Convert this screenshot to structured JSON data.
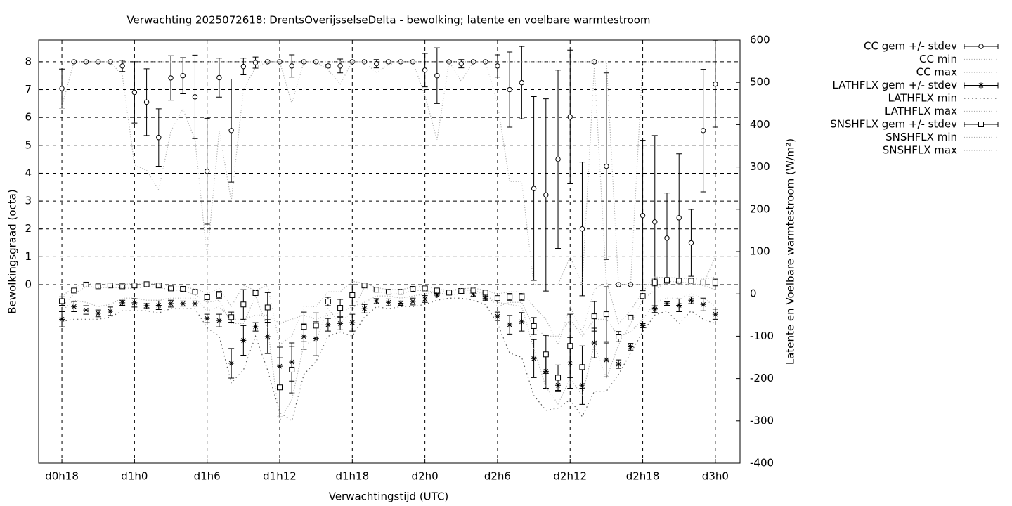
{
  "chart_data": {
    "type": "errorbar",
    "title": "Verwachting 2025072618: DrentsOverijsselseDelta - bewolking; latente en voelbare warmtestroom",
    "xlabel": "Verwachtingstijd (UTC)",
    "ylabel": "Bewolkingsgraad (octa)",
    "y2label": "Latente en Voelbare warmtestroom (W/m²)",
    "x": [
      18,
      19,
      20,
      21,
      22,
      23,
      24,
      25,
      26,
      27,
      28,
      29,
      30,
      31,
      32,
      33,
      34,
      35,
      36,
      37,
      38,
      39,
      40,
      41,
      42,
      43,
      44,
      45,
      46,
      47,
      48,
      49,
      50,
      51,
      52,
      53,
      54,
      55,
      56,
      57,
      58,
      59,
      60,
      61,
      62,
      63,
      64,
      65,
      66,
      67,
      68,
      69,
      70,
      71,
      72
    ],
    "xlim": [
      16.08,
      74.04
    ],
    "xticks": [
      {
        "value": 18,
        "label": "d0h18"
      },
      {
        "value": 24,
        "label": "d1h0"
      },
      {
        "value": 30,
        "label": "d1h6"
      },
      {
        "value": 36,
        "label": "d1h12"
      },
      {
        "value": 42,
        "label": "d1h18"
      },
      {
        "value": 48,
        "label": "d2h0"
      },
      {
        "value": 54,
        "label": "d2h6"
      },
      {
        "value": 60,
        "label": "d2h12"
      },
      {
        "value": 66,
        "label": "d2h18"
      },
      {
        "value": 72,
        "label": "d3h0"
      }
    ],
    "ylim": [
      -6.41,
      8.78
    ],
    "yticks": [
      0,
      1,
      2,
      3,
      4,
      5,
      6,
      7,
      8
    ],
    "y2lim": [
      -400,
      600
    ],
    "y2ticks": [
      -400,
      -300,
      -200,
      -100,
      0,
      100,
      200,
      300,
      400,
      500,
      600
    ],
    "grid": true,
    "legend": "outside-right",
    "series": [
      {
        "name": "CC gem +/- stdev",
        "style": "errorbars",
        "marker": "circle",
        "color": "#000000",
        "values": [
          7.04,
          8,
          8,
          8,
          8,
          7.85,
          6.9,
          6.55,
          5.28,
          7.42,
          7.5,
          6.74,
          4.07,
          7.43,
          5.53,
          7.83,
          7.97,
          8,
          8,
          7.85,
          8,
          8,
          7.85,
          7.85,
          8,
          8,
          7.93,
          8,
          8,
          8,
          7.7,
          7.5,
          8,
          7.93,
          8,
          8,
          7.85,
          7.0,
          7.25,
          3.45,
          3.22,
          4.5,
          6.02,
          2.0,
          8,
          4.25,
          0,
          0,
          2.48,
          2.25,
          1.67,
          2.4,
          1.5,
          5.53,
          7.2
        ],
        "errors": [
          0.7,
          0,
          0,
          0,
          0,
          0.2,
          1.1,
          1.2,
          1.03,
          0.8,
          0.65,
          1.5,
          1.9,
          0.7,
          1.85,
          0.3,
          0.2,
          0,
          0,
          0.4,
          0,
          0,
          0.05,
          0.25,
          0,
          0,
          0.15,
          0.05,
          0,
          0,
          0.6,
          1.0,
          0,
          0.15,
          0,
          0,
          0.4,
          1.35,
          1.3,
          3.3,
          3.45,
          3.2,
          2.4,
          2.4,
          0.05,
          3.35,
          0,
          0,
          2.7,
          3.1,
          1.62,
          2.3,
          1.2,
          2.2,
          1.55
        ]
      },
      {
        "name": "CC min",
        "style": "dotted",
        "color": "#aaaaaa",
        "values": [
          6.4,
          8,
          8,
          8,
          8,
          7.5,
          4.3,
          4.1,
          3.4,
          5.5,
          6.3,
          5.2,
          1.0,
          5.5,
          3.0,
          7.0,
          7.8,
          8,
          8,
          6.5,
          8,
          8,
          7.7,
          7.2,
          8,
          8,
          7.6,
          7.9,
          8,
          8,
          6.8,
          5.2,
          8,
          7.3,
          8,
          8,
          6.5,
          3.7,
          3.7,
          0,
          0,
          0,
          1,
          0,
          7.8,
          0,
          0,
          0,
          0,
          0,
          0,
          0,
          0,
          0,
          1.0
        ]
      },
      {
        "name": "CC max",
        "style": "dotted",
        "color": "#aaaaaa",
        "values": [
          8,
          8,
          8,
          8,
          8,
          8,
          8,
          8,
          8,
          8,
          8,
          8,
          8,
          8,
          8,
          8,
          8,
          8,
          8,
          8,
          8,
          8,
          8,
          8,
          8,
          8,
          8,
          8,
          8,
          8,
          8,
          8,
          8,
          8,
          8,
          8,
          8,
          8,
          8,
          8,
          8,
          8,
          8,
          8,
          8,
          8,
          0,
          0,
          8,
          8,
          8,
          8,
          8,
          8,
          8
        ]
      },
      {
        "name": "LATHFLX gem +/- stdev",
        "style": "errorbars",
        "marker": "star",
        "color": "#000000",
        "axis": "y2",
        "values": [
          -60,
          -30,
          -38,
          -46,
          -41,
          -21,
          -21,
          -28,
          -27,
          -23,
          -23,
          -23,
          -58,
          -63,
          -164,
          -110,
          -78,
          -101,
          -171,
          -161,
          -101,
          -106,
          -73,
          -70,
          -68,
          -35,
          -17,
          -20,
          -22,
          -18,
          -12,
          -3,
          3,
          6,
          0,
          -10,
          -53,
          -73,
          -66,
          -153,
          -183,
          -216,
          -163,
          -216,
          -116,
          -156,
          -166,
          -125,
          -75,
          -36,
          -23,
          -27,
          -15,
          -25,
          -48
        ],
        "errors": [
          18,
          12,
          10,
          8,
          10,
          6,
          10,
          5,
          10,
          8,
          6,
          6,
          10,
          15,
          35,
          35,
          10,
          40,
          45,
          45,
          30,
          40,
          15,
          15,
          20,
          10,
          6,
          8,
          5,
          8,
          8,
          4,
          3,
          6,
          6,
          5,
          10,
          22,
          22,
          45,
          40,
          15,
          60,
          45,
          35,
          40,
          10,
          8,
          5,
          8,
          4,
          15,
          8,
          15,
          12
        ]
      },
      {
        "name": "LATHFLX min",
        "style": "dotted",
        "color": "#555555",
        "axis": "y2",
        "values": [
          -65,
          -60,
          -60,
          -60,
          -55,
          -40,
          -40,
          -40,
          -45,
          -35,
          -35,
          -35,
          -80,
          -100,
          -210,
          -180,
          -100,
          -180,
          -280,
          -300,
          -190,
          -160,
          -100,
          -90,
          -100,
          -55,
          -30,
          -35,
          -30,
          -30,
          -25,
          -15,
          -10,
          -10,
          -15,
          -25,
          -70,
          -140,
          -150,
          -240,
          -275,
          -270,
          -250,
          -290,
          -230,
          -230,
          -190,
          -140,
          -90,
          -50,
          -40,
          -70,
          -40,
          -60,
          -70
        ]
      },
      {
        "name": "LATHFLX max",
        "style": "dotted",
        "color": "#aaaaaa",
        "axis": "y2",
        "values": [
          -40,
          -15,
          -20,
          -30,
          -25,
          -10,
          -10,
          -15,
          -15,
          -10,
          -10,
          -10,
          -40,
          -30,
          -60,
          -60,
          -50,
          -50,
          -70,
          -60,
          -50,
          -60,
          -50,
          -45,
          -30,
          -20,
          -5,
          -5,
          -10,
          -5,
          0,
          5,
          8,
          10,
          8,
          0,
          -30,
          -20,
          -20,
          -80,
          -100,
          -100,
          -60,
          -100,
          -60,
          -60,
          -100,
          -90,
          -60,
          -20,
          -10,
          -10,
          0,
          -10,
          -30
        ]
      },
      {
        "name": "SNSHFLX gem +/- stdev",
        "style": "errorbars",
        "marker": "square",
        "color": "#000000",
        "axis": "y2",
        "values": [
          -17,
          8,
          22,
          18,
          20,
          18,
          20,
          23,
          20,
          13,
          12,
          5,
          -8,
          -2,
          -55,
          -25,
          2,
          -32,
          -221,
          -179,
          -78,
          -75,
          -18,
          -33,
          -3,
          20,
          10,
          5,
          5,
          12,
          13,
          8,
          3,
          7,
          8,
          3,
          -10,
          -7,
          -7,
          -76,
          -143,
          -198,
          -123,
          -173,
          -53,
          -48,
          -101,
          -56,
          -5,
          27,
          33,
          31,
          31,
          27,
          27
        ],
        "errors": [
          10,
          5,
          3,
          3,
          3,
          3,
          5,
          3,
          3,
          3,
          3,
          5,
          5,
          8,
          12,
          35,
          5,
          35,
          70,
          55,
          35,
          30,
          10,
          20,
          25,
          4,
          5,
          5,
          5,
          4,
          4,
          4,
          3,
          5,
          5,
          4,
          5,
          8,
          8,
          20,
          45,
          30,
          75,
          50,
          35,
          65,
          12,
          5,
          5,
          8,
          3,
          3,
          3,
          3,
          8
        ]
      },
      {
        "name": "SNSHFLX min",
        "style": "dotted",
        "color": "#aaaaaa",
        "axis": "y2",
        "values": [
          -30,
          0,
          18,
          15,
          15,
          15,
          12,
          18,
          15,
          10,
          8,
          -2,
          -20,
          -15,
          -70,
          -70,
          -5,
          -80,
          -300,
          -250,
          -120,
          -110,
          -35,
          -70,
          -40,
          15,
          5,
          0,
          0,
          8,
          8,
          3,
          -2,
          0,
          2,
          -2,
          -20,
          -25,
          -30,
          -130,
          -220,
          -260,
          -200,
          -240,
          -120,
          -200,
          -120,
          -70,
          -15,
          10,
          30,
          28,
          25,
          20,
          10
        ]
      },
      {
        "name": "SNSHFLX max",
        "style": "dotted",
        "color": "#aaaaaa",
        "axis": "y2",
        "values": [
          -5,
          15,
          26,
          22,
          24,
          22,
          25,
          26,
          24,
          18,
          16,
          12,
          2,
          12,
          -30,
          20,
          8,
          20,
          -120,
          -100,
          -30,
          -30,
          5,
          5,
          30,
          25,
          15,
          10,
          10,
          16,
          18,
          12,
          8,
          12,
          14,
          8,
          0,
          5,
          5,
          -30,
          -60,
          -120,
          -30,
          -90,
          10,
          30,
          -70,
          -40,
          5,
          40,
          38,
          38,
          36,
          35,
          40
        ]
      }
    ]
  }
}
